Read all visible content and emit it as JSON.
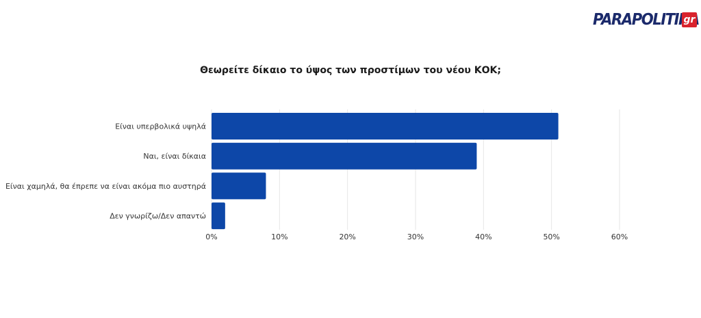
{
  "brand": {
    "logo_text": "PARAPOLITIKA",
    "logo_suffix": "gr",
    "colors": {
      "primary": "#1b2a6b",
      "accent": "#d9232d"
    }
  },
  "chart_data": {
    "type": "bar",
    "orientation": "horizontal",
    "title": "Θεωρείτε δίκαιο το ύψος των προστίμων του νέου ΚΟΚ;",
    "categories": [
      "Είναι υπερβολικά υψηλά",
      "Ναι, είναι δίκαια",
      "Είναι χαμηλά, θα έπρεπε να είναι ακόμα πιο αυστηρά",
      "Δεν γνωρίζω/Δεν απαντώ"
    ],
    "values": [
      51,
      39,
      8,
      2
    ],
    "xlim": [
      0,
      60
    ],
    "xticks": [
      "0%",
      "10%",
      "20%",
      "30%",
      "40%",
      "50%",
      "60%"
    ],
    "xlabel": "",
    "ylabel": "",
    "grid": true,
    "bar_color": "#0d47a8"
  }
}
